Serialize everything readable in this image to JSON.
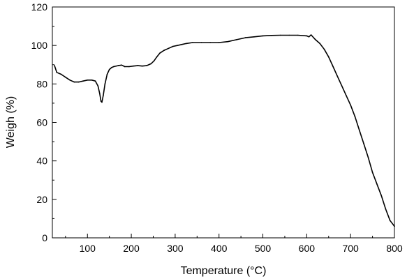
{
  "chart_data": {
    "type": "line",
    "title": "",
    "xlabel": "Temperature (°C)",
    "ylabel": "Weigh (%)",
    "xlim": [
      20,
      800
    ],
    "ylim": [
      0,
      120
    ],
    "xticks": [
      100,
      200,
      300,
      400,
      500,
      600,
      700,
      800
    ],
    "yticks": [
      0,
      20,
      40,
      60,
      80,
      100,
      120
    ],
    "grid": false,
    "legend": "none",
    "line_color": "#000000",
    "series": [
      {
        "x": [
          25,
          30,
          40,
          50,
          60,
          70,
          80,
          90,
          100,
          110,
          118,
          124,
          128,
          131,
          133,
          136,
          140,
          145,
          150,
          155,
          160,
          170,
          178,
          185,
          195,
          205,
          215,
          225,
          235,
          245,
          252,
          258,
          265,
          275,
          285,
          295,
          305,
          315,
          325,
          340,
          360,
          380,
          400,
          420,
          440,
          460,
          480,
          500,
          520,
          540,
          560,
          580,
          600,
          605,
          610,
          620,
          630,
          640,
          650,
          660,
          670,
          680,
          690,
          700,
          710,
          720,
          730,
          740,
          750,
          760,
          770,
          780,
          790,
          800
        ],
        "y": [
          89.5,
          86,
          85,
          83.5,
          82,
          81,
          81,
          81.5,
          82,
          82,
          81.5,
          79,
          75,
          71,
          70.5,
          74,
          80,
          85,
          87.5,
          88.5,
          89,
          89.5,
          89.8,
          89,
          89,
          89.3,
          89.5,
          89.3,
          89.5,
          90.5,
          92,
          94,
          96,
          97.5,
          98.5,
          99.5,
          100,
          100.5,
          101,
          101.5,
          101.5,
          101.5,
          101.5,
          102,
          103,
          104,
          104.5,
          105,
          105.2,
          105.3,
          105.3,
          105.3,
          105,
          104.5,
          105.5,
          103,
          101,
          98,
          94,
          89,
          84,
          79,
          74,
          69,
          63,
          56,
          49,
          42,
          34,
          28,
          22,
          15,
          9,
          6
        ]
      }
    ]
  }
}
